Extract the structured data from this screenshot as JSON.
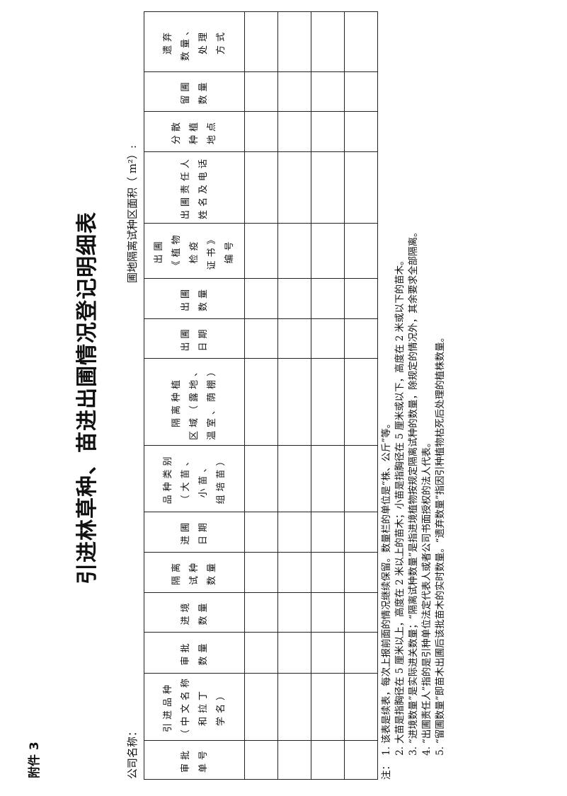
{
  "attachment": "附件 3",
  "title": "引进林草种、苗进出圃情况登记明细表",
  "company_label": "公司名称：",
  "area_label": "圃地隔离试种区面积（   m²）:",
  "table": {
    "headers": [
      [
        "审批",
        "单号"
      ],
      [
        "引进品种",
        "（中文名称",
        "和拉丁",
        "学名）"
      ],
      [
        "审批",
        "数量"
      ],
      [
        "进境",
        "数量"
      ],
      [
        "隔离",
        "试种",
        "数量"
      ],
      [
        "进圃",
        "日期"
      ],
      [
        "品种类别",
        "（大苗、",
        "小苗、",
        "组培苗）"
      ],
      [
        "隔离种植",
        "区域（露地、",
        "温室、荫棚）"
      ],
      [
        "出圃",
        "日期"
      ],
      [
        "出圃",
        "数量"
      ],
      [
        "出圃",
        "《植物",
        "检疫",
        "证书》",
        "编号"
      ],
      [
        "出圃责任人",
        "姓名及电话"
      ],
      [
        "分散",
        "种植",
        "地点"
      ],
      [
        "留圃",
        "数量"
      ],
      [
        "遗弃",
        "数量、",
        "处理",
        "方式"
      ]
    ],
    "rows": [
      [
        "",
        "",
        "",
        "",
        "",
        "",
        "",
        "",
        "",
        "",
        "",
        "",
        "",
        "",
        ""
      ],
      [
        "",
        "",
        "",
        "",
        "",
        "",
        "",
        "",
        "",
        "",
        "",
        "",
        "",
        "",
        ""
      ],
      [
        "",
        "",
        "",
        "",
        "",
        "",
        "",
        "",
        "",
        "",
        "",
        "",
        "",
        "",
        ""
      ],
      [
        "",
        "",
        "",
        "",
        "",
        "",
        "",
        "",
        "",
        "",
        "",
        "",
        "",
        "",
        ""
      ]
    ]
  },
  "notes": {
    "prefix": "注：",
    "items": [
      {
        "num": "1.",
        "text": "该表是续表，每次上报前面的情况继续保留。数量栏的单位是“株、公斤”等。"
      },
      {
        "num": "2.",
        "text": "大苗是指胸径在 5 厘米以上，高度在 2 米以上的苗木；小苗是指胸径在 5 厘米或以下，高度在 2 米或以下的苗木。"
      },
      {
        "num": "3.",
        "text": "“进境数量”是实际进关数量；“隔离试种数量”是指进境植物按规定隔离试种的数量，除规定的情况外，其余要求全部隔离。"
      },
      {
        "num": "4.",
        "text": "“出圃责任人”指的是引种单位法定代表人或者公司书面授权的法人代表。"
      },
      {
        "num": "5.",
        "text": "“留圃数量”即苗木出圃后该批苗木的实时数量。“遗弃数量”指因引种植物枯死后处理的植株数量。"
      }
    ]
  }
}
